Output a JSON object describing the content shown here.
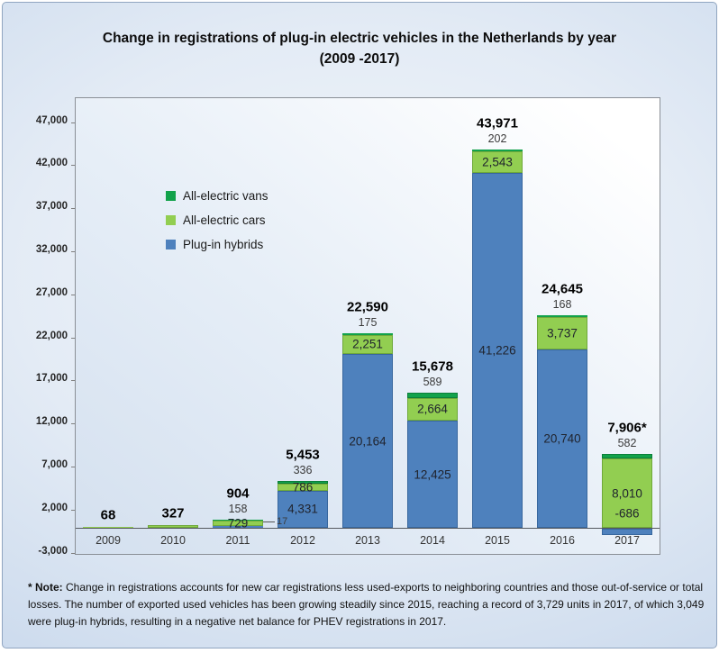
{
  "title": {
    "line1": "Change in registrations of plug-in electric vehicles in the Netherlands by year",
    "line2": "(2009 -2017)"
  },
  "legend": {
    "items": [
      {
        "label": "All-electric vans",
        "color": "#12a24b"
      },
      {
        "label": "All-electric cars",
        "color": "#92ce51"
      },
      {
        "label": "Plug-in hybrids",
        "color": "#4e81bd"
      }
    ]
  },
  "footnote": {
    "label": "* Note:",
    "text": " Change in registrations accounts for new car registrations less used-exports to neighboring countries and those out-of-service or total losses. The number of exported used vehicles has been growing steadily since 2015, reaching a record of 3,729 units in 2017, of which 3,049 were plug-in hybrids, resulting in a negative net balance for PHEV registrations in 2017."
  },
  "chart_data": {
    "type": "bar",
    "stacked": true,
    "title": "Change in registrations of plug-in electric vehicles in the Netherlands by year (2009 -2017)",
    "categories": [
      "2009",
      "2010",
      "2011",
      "2012",
      "2013",
      "2014",
      "2015",
      "2016",
      "2017"
    ],
    "series": [
      {
        "name": "Plug-in hybrids",
        "key": "hybrids",
        "color": "#4e81bd",
        "border": "#38679e",
        "values": [
          null,
          null,
          158,
          4331,
          20164,
          12425,
          41226,
          20740,
          -686
        ]
      },
      {
        "name": "All-electric cars",
        "key": "cars",
        "color": "#92ce51",
        "border": "#6fa93a",
        "values": [
          68,
          327,
          729,
          786,
          2251,
          2664,
          2543,
          3737,
          8010
        ]
      },
      {
        "name": "All-electric vans",
        "key": "vans",
        "color": "#12a24b",
        "border": "#0b7f3a",
        "values": [
          null,
          null,
          17,
          336,
          175,
          589,
          202,
          168,
          582
        ]
      }
    ],
    "totals": [
      "68",
      "327",
      "904",
      "5,453",
      "22,590",
      "15,678",
      "43,971",
      "24,645",
      "7,906*"
    ],
    "bar_labels": [
      {},
      {},
      {
        "above": "158",
        "cars": "729",
        "side": "17"
      },
      {
        "above": "336",
        "cars": "786",
        "hybrids": "4,331"
      },
      {
        "above": "175",
        "cars": "2,251",
        "hybrids": "20,164"
      },
      {
        "above": "589",
        "cars": "2,664",
        "hybrids": "12,425"
      },
      {
        "above": "202",
        "cars": "2,543",
        "hybrids": "41,226"
      },
      {
        "above": "168",
        "cars": "3,737",
        "hybrids": "20,740"
      },
      {
        "above": "582",
        "cars": "8,010",
        "hybrids": "-686"
      }
    ],
    "y_axis": {
      "ticks": [
        "47,000",
        "42,000",
        "37,000",
        "32,000",
        "27,000",
        "22,000",
        "17,000",
        "12,000",
        "7,000",
        "2,000",
        "-3,000"
      ],
      "min": -3000,
      "max": 47000,
      "step": 5000
    },
    "xlabel": "",
    "ylabel": "",
    "grid": false,
    "legend_position": "upper-left-inside"
  }
}
